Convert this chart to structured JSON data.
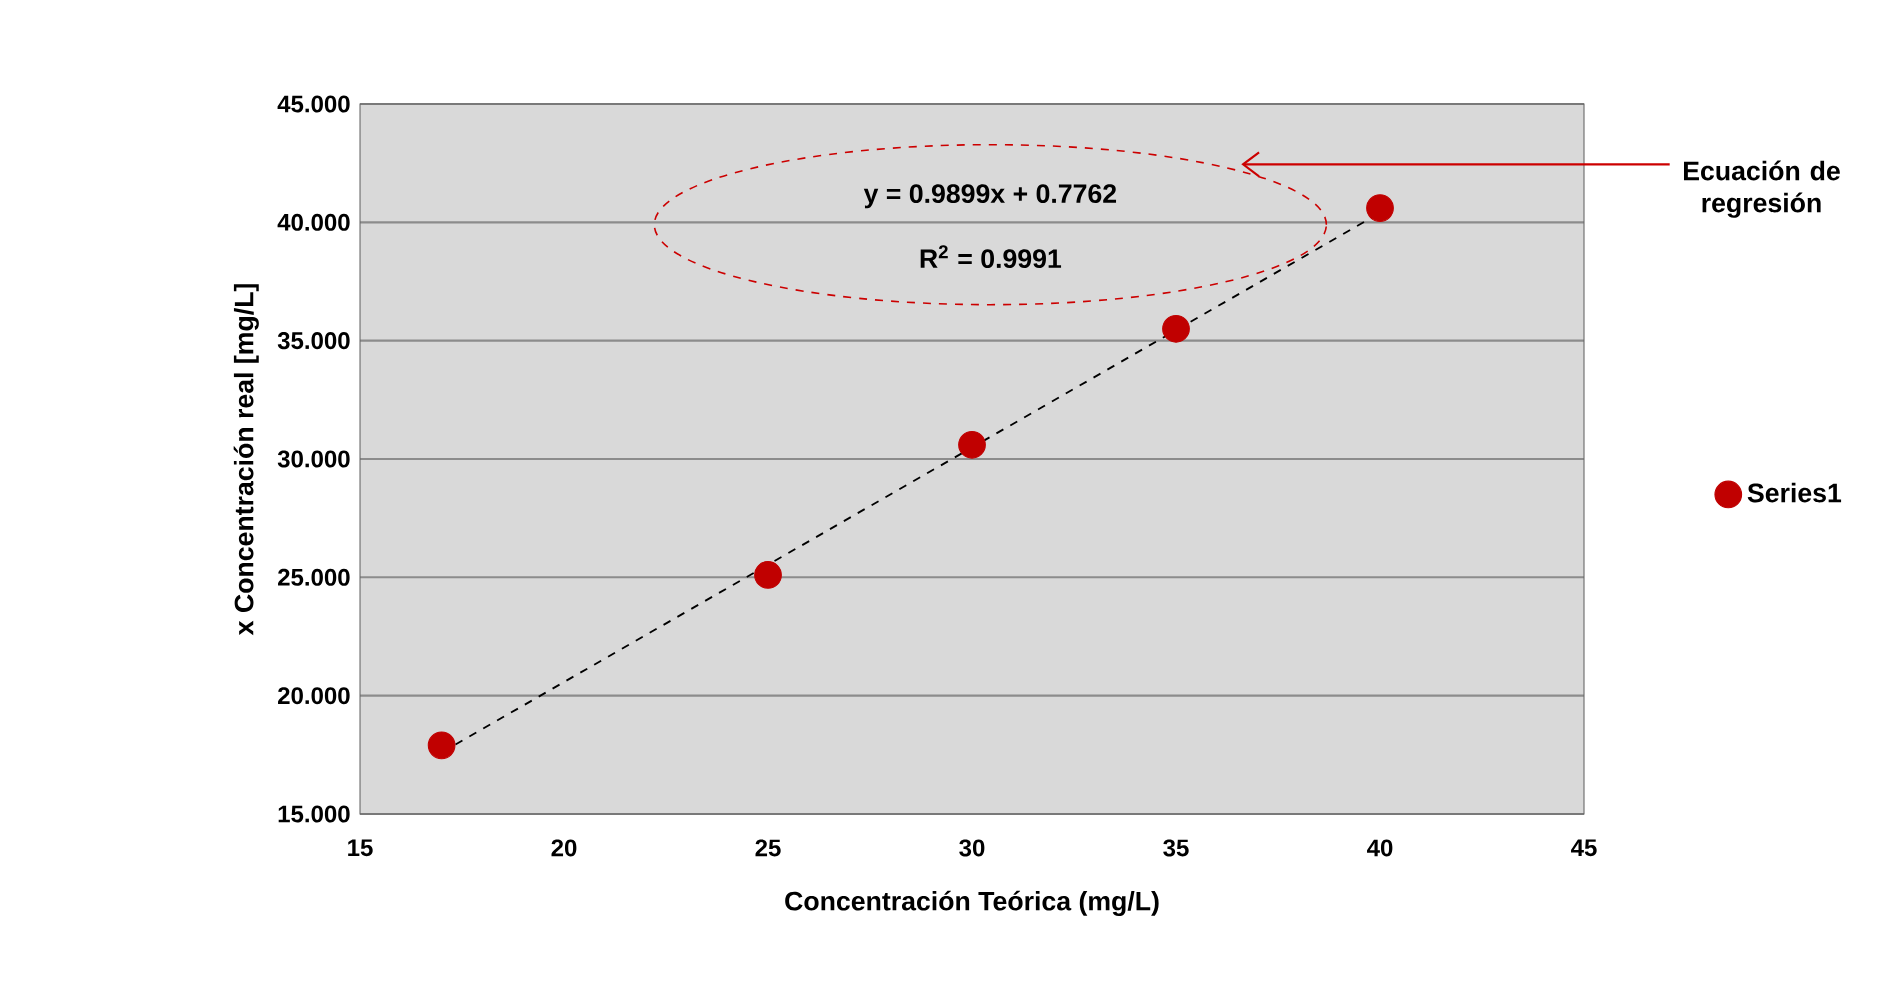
{
  "chart_data": {
    "type": "scatter",
    "xlabel": "Concentración Teórica (mg/L)",
    "ylabel": "x Concentración real [mg/L]",
    "annotations": [
      "y = 0.9899x  + 0.7762",
      "R$^{2}$ = 0.9991",
      "Ecuación de regresión"
    ],
    "x": [
      17,
      25,
      30,
      35,
      40
    ],
    "series": [
      {
        "name": "Series1",
        "color": "#c00000",
        "values": [
          17.9,
          25.1,
          30.6,
          35.5,
          40.6
        ]
      },
      {
        "type": "line",
        "x": [
          17,
          40
        ],
        "values": [
          17.6,
          40.4
        ],
        "color": "#000000",
        "line_style": "dashed"
      }
    ],
    "xlim": [
      15,
      45
    ],
    "ylim": [
      15,
      45
    ],
    "xticks": [
      15,
      20,
      25,
      30,
      35,
      40,
      45
    ],
    "yticks": [
      {
        "value": 15,
        "label": "15.000"
      },
      {
        "value": 20,
        "label": "20.000"
      },
      {
        "value": 25,
        "label": "25.000"
      },
      {
        "value": 30,
        "label": "30.000"
      },
      {
        "value": 35,
        "label": "35.000"
      },
      {
        "value": 40,
        "label": "40.000"
      },
      {
        "value": 45,
        "label": "45.000"
      }
    ],
    "grid": "y",
    "legend": "right"
  }
}
